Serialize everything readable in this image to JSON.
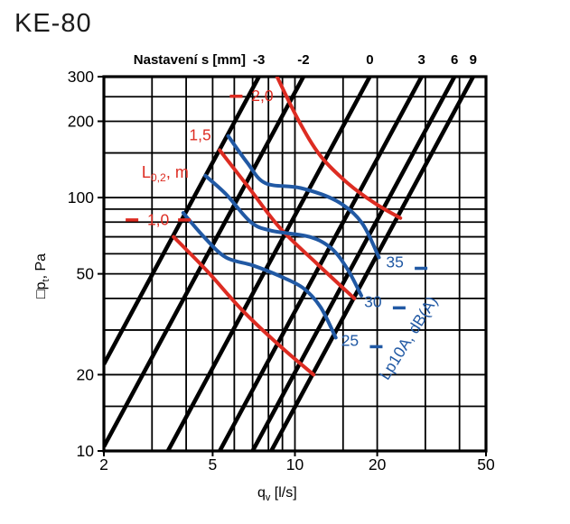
{
  "chart_data": {
    "type": "line",
    "title": "KE-80",
    "x_axis": {
      "label": "qv [l/s]",
      "label_parts": [
        {
          "t": "q"
        },
        {
          "t": "v",
          "sub": true
        },
        {
          "t": " [l/s]"
        }
      ],
      "scale": "log",
      "min": 2,
      "max": 50,
      "ticks": [
        2,
        5,
        10,
        20,
        50
      ],
      "gridlines": [
        3,
        4,
        5,
        6,
        7,
        8,
        9,
        10,
        15,
        20,
        30,
        40
      ]
    },
    "y_axis": {
      "label": "□pt, Pa",
      "label_parts": [
        {
          "t": "□p"
        },
        {
          "t": "t",
          "sub": true
        },
        {
          "t": ", Pa"
        }
      ],
      "scale": "log",
      "min": 10,
      "max": 300,
      "ticks": [
        10,
        20,
        50,
        100,
        200,
        300
      ],
      "gridlines": [
        15,
        20,
        30,
        40,
        50,
        60,
        70,
        80,
        90,
        100,
        150,
        200,
        250
      ]
    },
    "top_axis": {
      "title": "Nastavení s [mm]"
    },
    "setting_lines": [
      {
        "label": "-3",
        "C": 5.5
      },
      {
        "label": "-2",
        "C": 2.6
      },
      {
        "label": "0",
        "C": 0.85
      },
      {
        "label": "3",
        "C": 0.355
      },
      {
        "label": "6",
        "C": 0.204
      },
      {
        "label": "9",
        "C": 0.149
      }
    ],
    "throw_series": {
      "legend": "L0,2, m",
      "legend_parts": [
        {
          "t": "L"
        },
        {
          "t": "0,2",
          "sub": true
        },
        {
          "t": ", m"
        }
      ],
      "legend_anchor": [
        2.75,
        120
      ],
      "color": "#dd2c22",
      "curves": [
        {
          "label": "1,0",
          "label_anchor": [
            3.16,
            78
          ],
          "dashes": "left right",
          "points": [
            [
              3.6,
              70
            ],
            [
              4.8,
              51
            ],
            [
              6.4,
              36
            ],
            [
              8.8,
              26
            ],
            [
              11.7,
              20
            ]
          ]
        },
        {
          "label": "1,5",
          "label_anchor": [
            4.5,
            168
          ],
          "dashes": "",
          "points": [
            [
              5.3,
              154
            ],
            [
              6.8,
              109
            ],
            [
              8.8,
              76
            ],
            [
              12.0,
              55
            ],
            [
              16.5,
              40
            ]
          ]
        },
        {
          "label": "2,0",
          "label_anchor": [
            7.6,
            240
          ],
          "dashes": "left",
          "points": [
            [
              8.6,
              300
            ],
            [
              10.3,
              202
            ],
            [
              12.4,
              146
            ],
            [
              15.6,
              114
            ],
            [
              19.6,
              95
            ],
            [
              24.3,
              83
            ]
          ]
        }
      ]
    },
    "sound_series": {
      "legend": "Lp10A, dB(A)",
      "legend_anchor": [
        27,
        27.2
      ],
      "legend_rotation": -58,
      "color": "#2159a4",
      "curves": [
        {
          "label": "25",
          "label_anchor": [
            15.9,
            26
          ],
          "dashes": "right",
          "points": [
            [
              3.9,
              87
            ],
            [
              4.7,
              69
            ],
            [
              5.6,
              58
            ],
            [
              7.0,
              54
            ],
            [
              8.8,
              49
            ],
            [
              10.7,
              44
            ],
            [
              12.4,
              37
            ],
            [
              14.1,
              28
            ]
          ]
        },
        {
          "label": "30",
          "label_anchor": [
            19.3,
            37
          ],
          "dashes": "right",
          "points": [
            [
              4.7,
              122
            ],
            [
              5.6,
              103
            ],
            [
              6.9,
              80
            ],
            [
              8.2,
              74
            ],
            [
              11.3,
              70
            ],
            [
              13.6,
              63
            ],
            [
              15.6,
              52
            ],
            [
              17.5,
              41
            ]
          ]
        },
        {
          "label": "35",
          "label_anchor": [
            23.2,
            53
          ],
          "dashes": "right",
          "points": [
            [
              5.7,
              175
            ],
            [
              6.7,
              137
            ],
            [
              7.8,
              114
            ],
            [
              10.5,
              109
            ],
            [
              14.2,
              97
            ],
            [
              17.5,
              80
            ],
            [
              20.3,
              58
            ]
          ]
        }
      ]
    },
    "colors": {
      "red": "#dd2c22",
      "blue": "#2159a4",
      "line": "#000000"
    }
  }
}
